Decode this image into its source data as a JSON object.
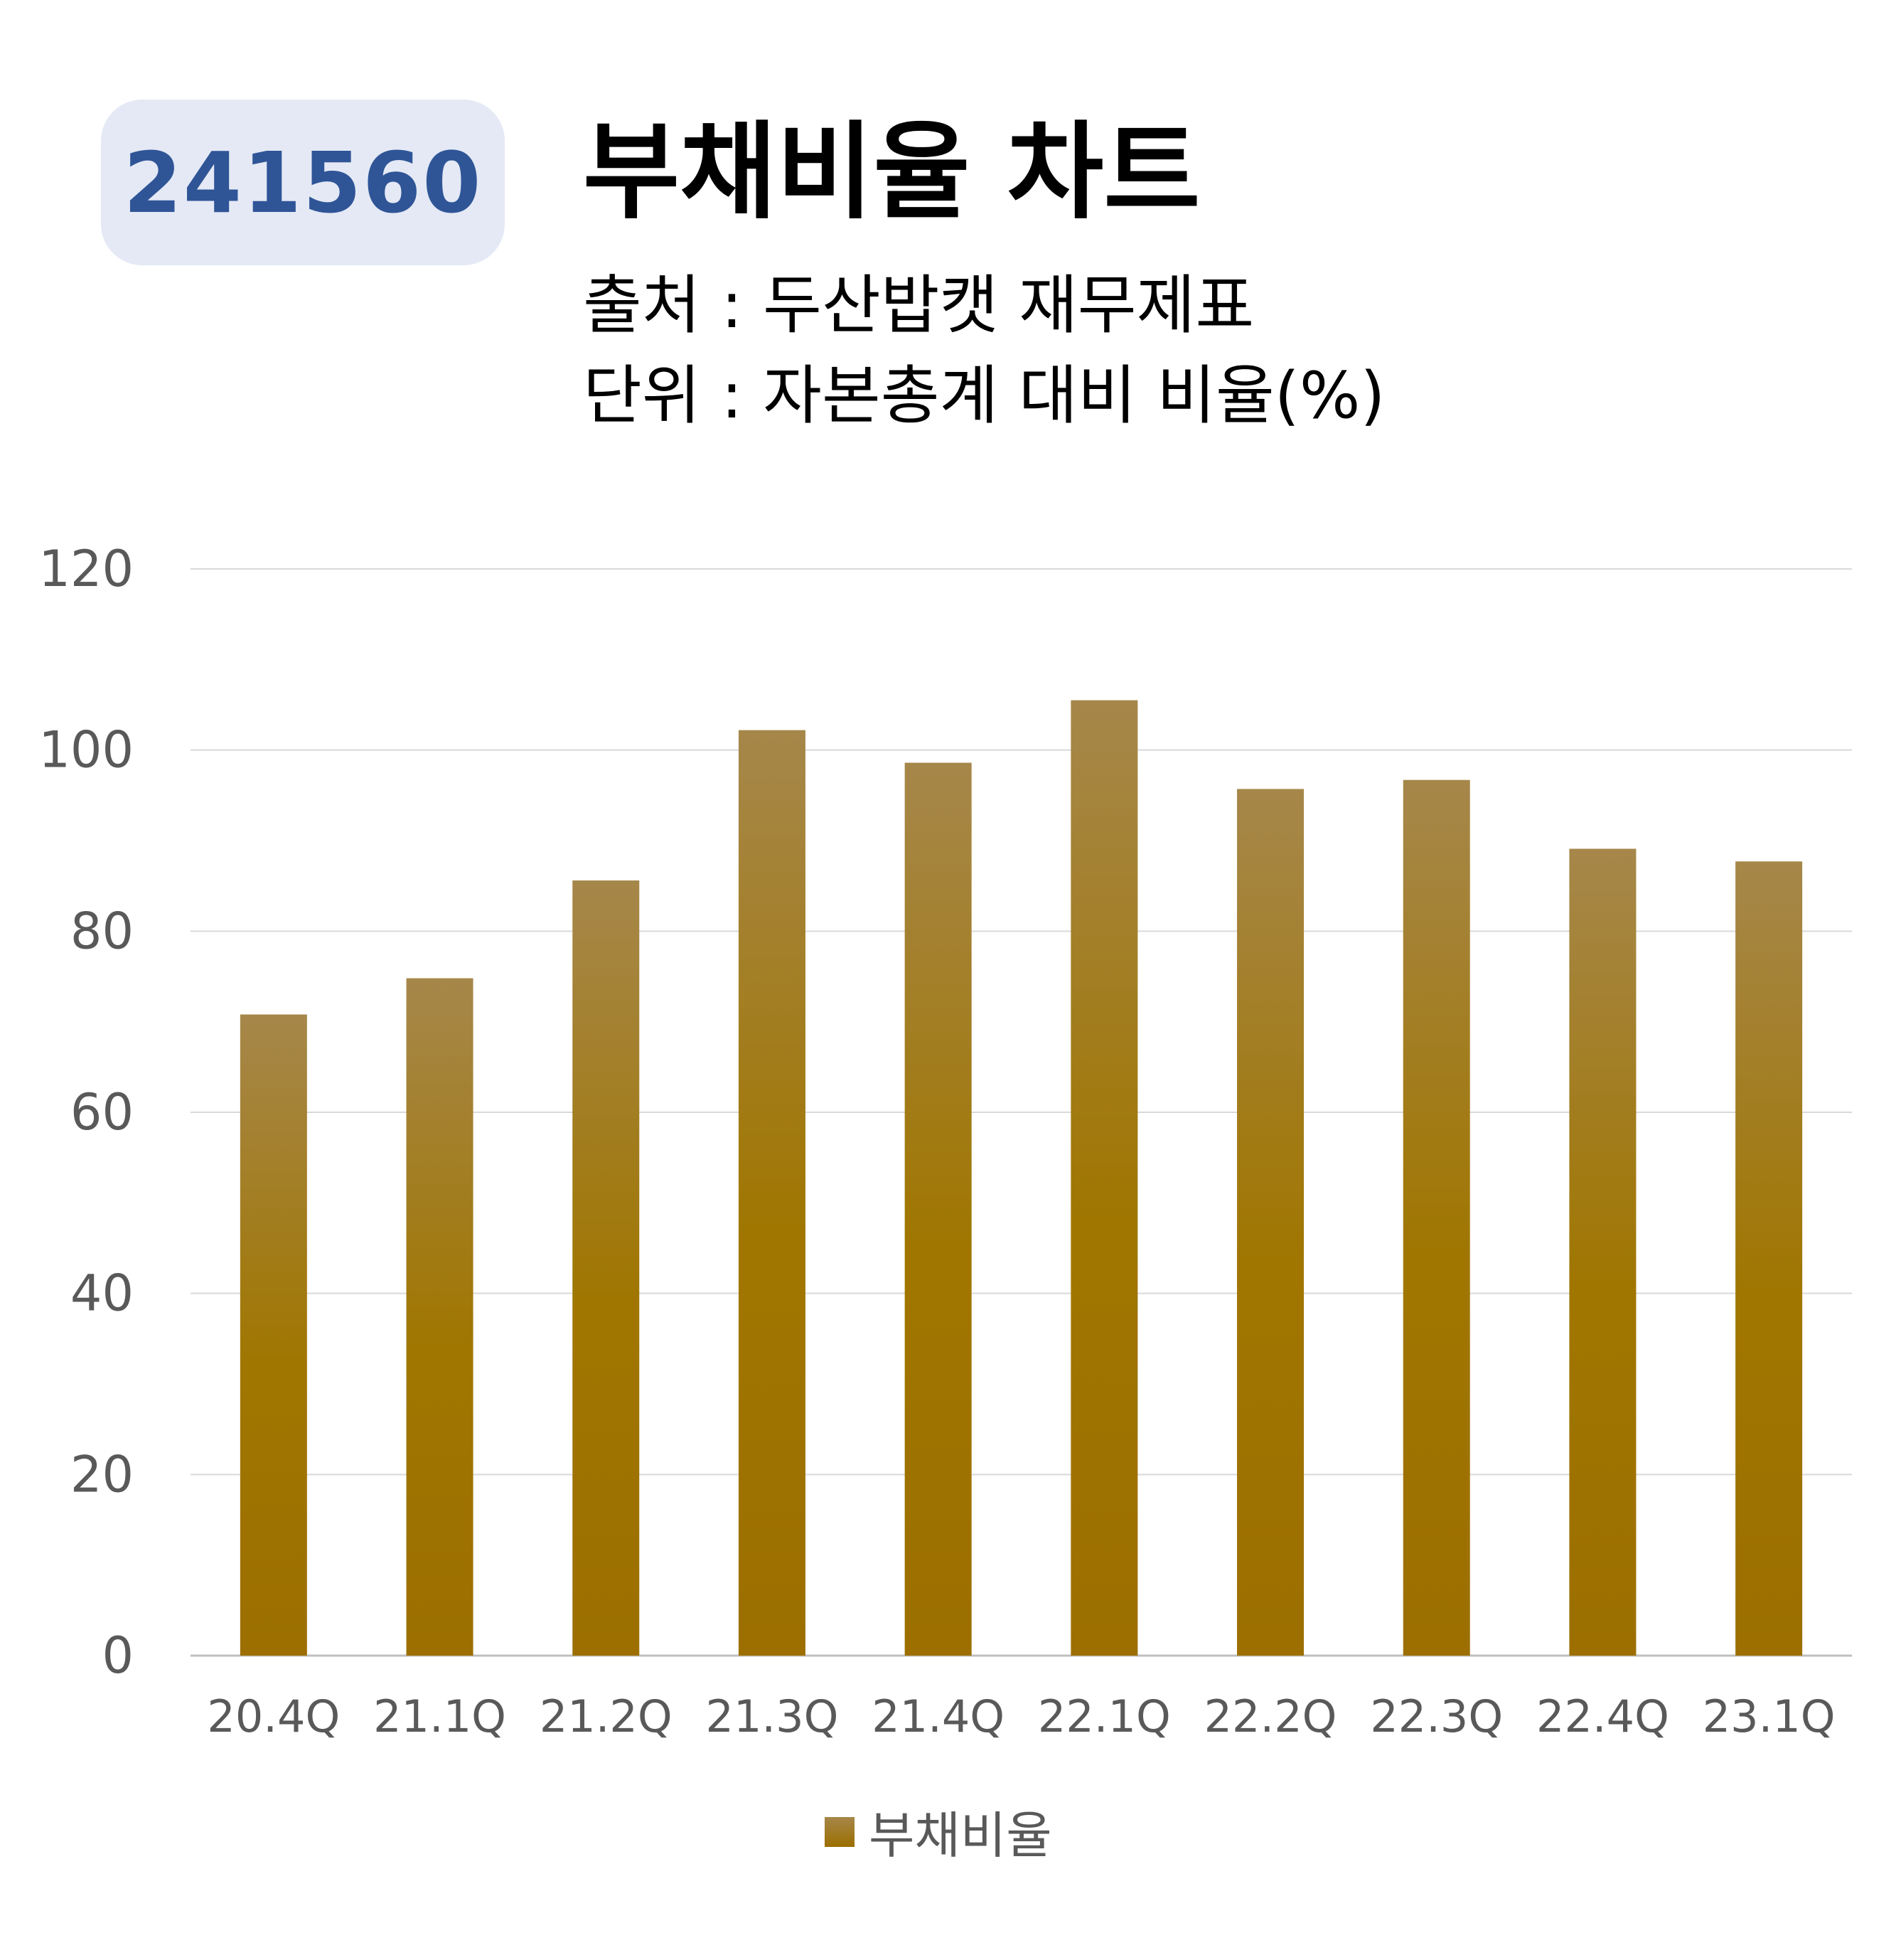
{
  "badge": {
    "code": "241560"
  },
  "header": {
    "title": "부채비율 차트",
    "source": "출처 : 두산밥캣 재무제표",
    "unit": "단위 : 자본총계 대비 비율(%)"
  },
  "colors": {
    "bar_top": "#a6874a",
    "bar_bottom": "#9c6f00",
    "badge_bg": "#e4e9f5",
    "badge_text": "#2f5597",
    "gridline": "#d9d9d9",
    "axis_text": "#595959"
  },
  "chart_data": {
    "type": "bar",
    "categories": [
      "20.4Q",
      "21.1Q",
      "21.2Q",
      "21.3Q",
      "21.4Q",
      "22.1Q",
      "22.2Q",
      "22.3Q",
      "22.4Q",
      "23.1Q"
    ],
    "series": [
      {
        "name": "부채비율",
        "values": [
          70.8,
          74.8,
          85.6,
          102.2,
          98.6,
          105.5,
          95.7,
          96.7,
          89.1,
          87.7
        ]
      }
    ],
    "ylim": [
      0,
      120
    ],
    "yticks": [
      0,
      20,
      40,
      60,
      80,
      100,
      120
    ],
    "grid": true,
    "legend": "bottom-center"
  }
}
